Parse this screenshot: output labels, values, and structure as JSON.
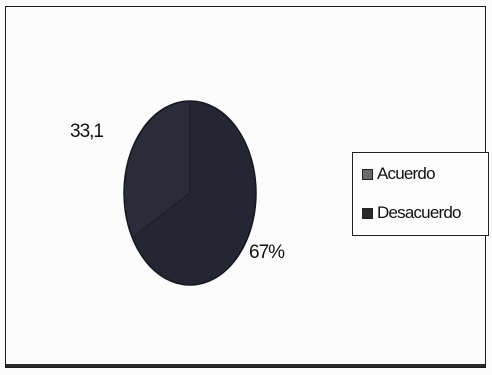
{
  "chart_data": {
    "type": "pie",
    "slices": [
      {
        "name": "Acuerdo",
        "value": 33.1,
        "label": "33,1",
        "color": "#2b2c3a"
      },
      {
        "name": "Desacuerdo",
        "value": 67,
        "label": "67%",
        "color": "#242634"
      }
    ],
    "legend": {
      "position": "right",
      "entries": [
        {
          "label": "Acuerdo",
          "color": "#6a6a6a"
        },
        {
          "label": "Desacuerdo",
          "color": "#2a2a2a"
        }
      ]
    }
  }
}
